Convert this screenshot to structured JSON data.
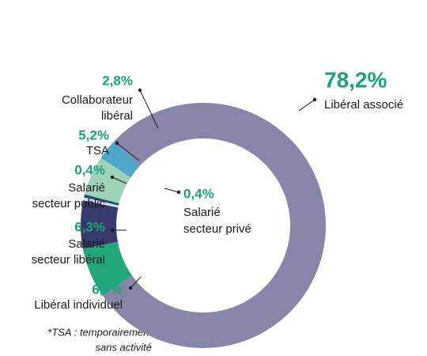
{
  "chart_data": {
    "type": "donut",
    "categories": [
      [
        "Libéral associé"
      ],
      [
        "Collaborateur",
        "libéral"
      ],
      [
        "TSA"
      ],
      [
        "Salarié",
        "secteur public"
      ],
      [
        "Salarié",
        "secteur privé"
      ],
      [
        "Salarié",
        "secteur libéral"
      ],
      [
        "Libéral individuel"
      ]
    ],
    "values": [
      78.2,
      2.8,
      5.2,
      0.4,
      0.4,
      6.3,
      6.7
    ],
    "value_labels": [
      "78,2%",
      "2,8%",
      "5,2%",
      "0,4%",
      "0,4%",
      "6,3%",
      "6,7%"
    ],
    "colors": [
      "#8786a9",
      "#4ea7c9",
      "#9fd3b8",
      "#1d4f7c",
      "#d9dce9",
      "#383a6c",
      "#21a77a"
    ],
    "footnote": [
      "*TSA : temporairement",
      "sans activité"
    ]
  }
}
